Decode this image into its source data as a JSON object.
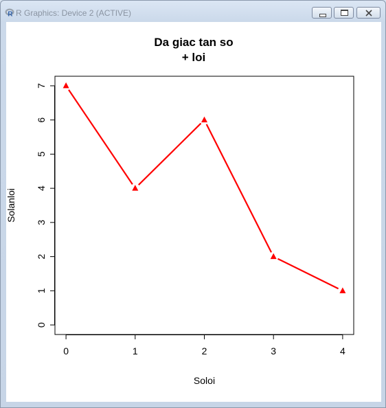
{
  "window": {
    "title": "R Graphics: Device 2 (ACTIVE)",
    "buttons": [
      "minimize-icon",
      "maximize-icon",
      "close-icon"
    ]
  },
  "chart_data": {
    "type": "line",
    "title_lines": [
      "Da giac tan so",
      "+ loi"
    ],
    "xlabel": "Soloi",
    "ylabel": "Solanloi",
    "x": [
      0,
      1,
      2,
      3,
      4
    ],
    "y": [
      7,
      4,
      6,
      2,
      1
    ],
    "xticks": [
      0,
      1,
      2,
      3,
      4
    ],
    "yticks": [
      0,
      1,
      2,
      3,
      4,
      5,
      6,
      7
    ],
    "xlim": [
      -0.16,
      4.16
    ],
    "ylim": [
      -0.28,
      7.28
    ],
    "line_color": "#ff0000",
    "marker_color": "#ff0000",
    "marker": "triangle",
    "grid": false
  }
}
